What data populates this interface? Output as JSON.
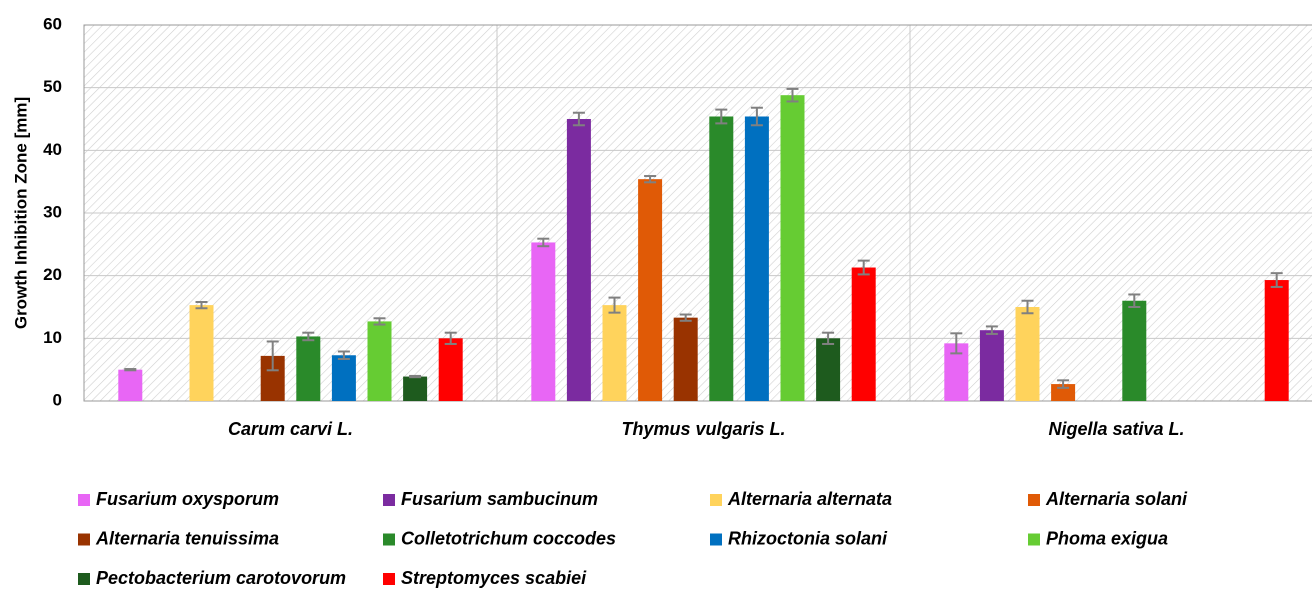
{
  "chart_data": {
    "type": "bar",
    "y_label": "Growth Inhibition Zone [mm]",
    "categories": [
      "Carum carvi L.",
      "Thymus vulgaris L.",
      "Nigella sativa L."
    ],
    "ylim": [
      0,
      60
    ],
    "yticks": [
      0,
      10,
      20,
      30,
      40,
      50,
      60
    ],
    "grid": true,
    "series": [
      {
        "name": "Fusarium oxysporum",
        "color": "#e866f5",
        "values": [
          5.0,
          25.3,
          9.2
        ],
        "errors": [
          0.1,
          0.6,
          1.6
        ]
      },
      {
        "name": "Fusarium sambucinum",
        "color": "#7b2ba0",
        "values": [
          0,
          45.0,
          11.3
        ],
        "errors": [
          0,
          1.0,
          0.6
        ]
      },
      {
        "name": "Alternaria alternata",
        "color": "#ffd35c",
        "values": [
          15.3,
          15.3,
          15.0
        ],
        "errors": [
          0.5,
          1.2,
          1.0
        ]
      },
      {
        "name": "Alternaria solani",
        "color": "#e05a06",
        "values": [
          0,
          35.4,
          2.7
        ],
        "errors": [
          0,
          0.5,
          0.6
        ]
      },
      {
        "name": "Alternaria tenuissima",
        "color": "#993300",
        "values": [
          7.2,
          13.3,
          0
        ],
        "errors": [
          2.3,
          0.5,
          0
        ]
      },
      {
        "name": "Colletotrichum coccodes",
        "color": "#2a8a2a",
        "values": [
          10.3,
          45.4,
          16.0
        ],
        "errors": [
          0.6,
          1.1,
          1.0
        ]
      },
      {
        "name": "Rhizoctonia solani",
        "color": "#0070c0",
        "values": [
          7.3,
          45.4,
          0
        ],
        "errors": [
          0.6,
          1.4,
          0
        ]
      },
      {
        "name": "Phoma exigua",
        "color": "#66cc33",
        "values": [
          12.7,
          48.8,
          0
        ],
        "errors": [
          0.5,
          1.0,
          0
        ]
      },
      {
        "name": "Pectobacterium carotovorum",
        "color": "#1e5b1e",
        "values": [
          3.9,
          10.0,
          0
        ],
        "errors": [
          0.1,
          0.9,
          0
        ]
      },
      {
        "name": "Streptomyces scabiei",
        "color": "#ff0000",
        "values": [
          10.0,
          21.3,
          19.3
        ],
        "errors": [
          0.9,
          1.1,
          1.1
        ]
      }
    ]
  }
}
